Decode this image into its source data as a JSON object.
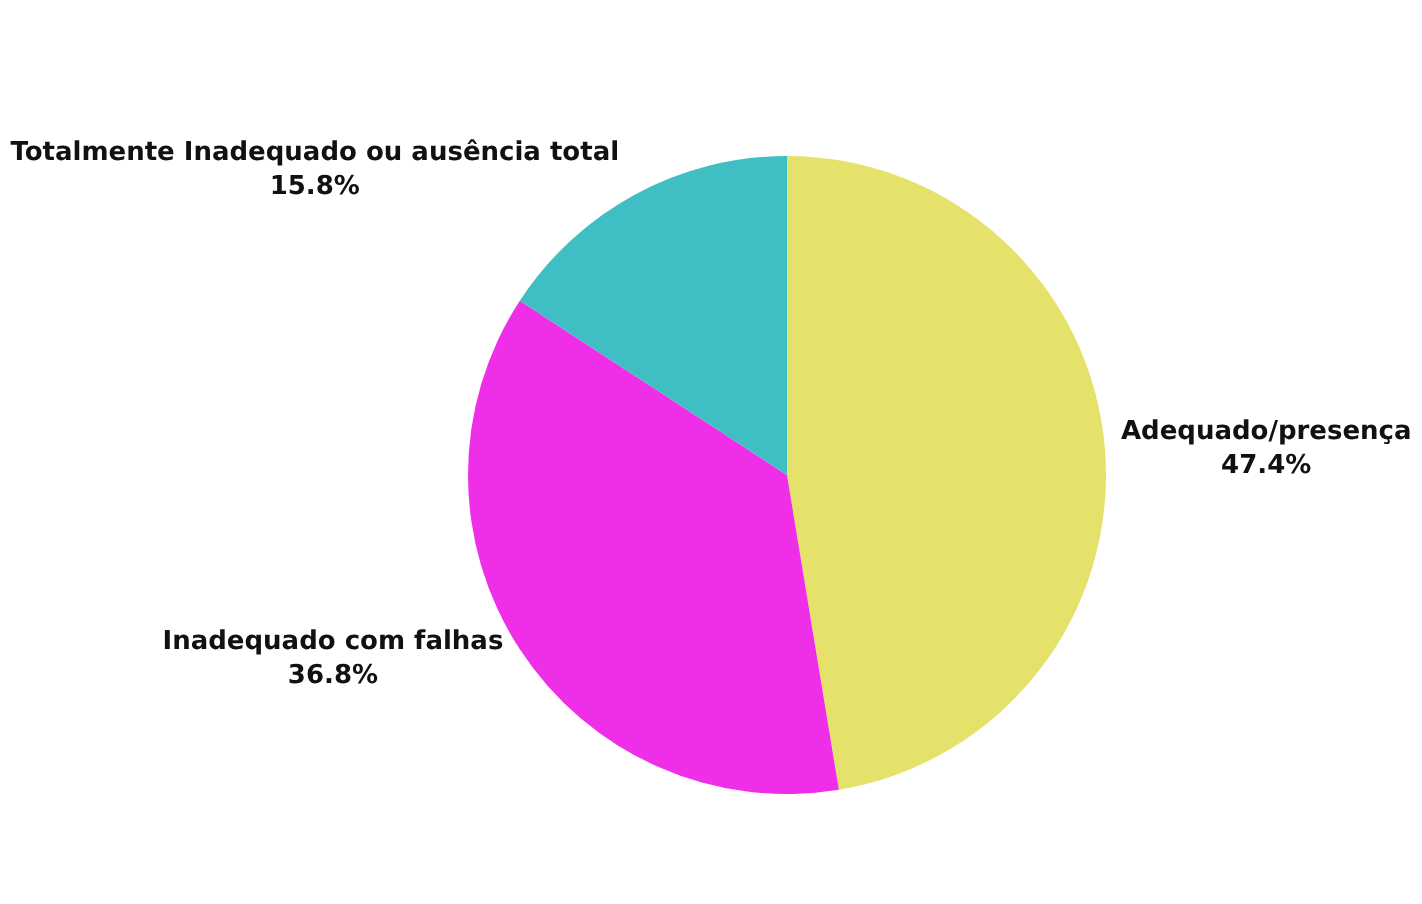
{
  "chart_data": {
    "type": "pie",
    "categories": [
      "Adequado/presença",
      "Inadequado com falhas",
      "Totalmente Inadequado ou ausência total"
    ],
    "values": [
      47.4,
      36.8,
      15.8
    ],
    "colors": [
      "#e5e26b",
      "#ef2ee8",
      "#3fbfc4"
    ],
    "value_labels": [
      "47.4%",
      "36.8%",
      "15.8%"
    ],
    "legend": false
  }
}
